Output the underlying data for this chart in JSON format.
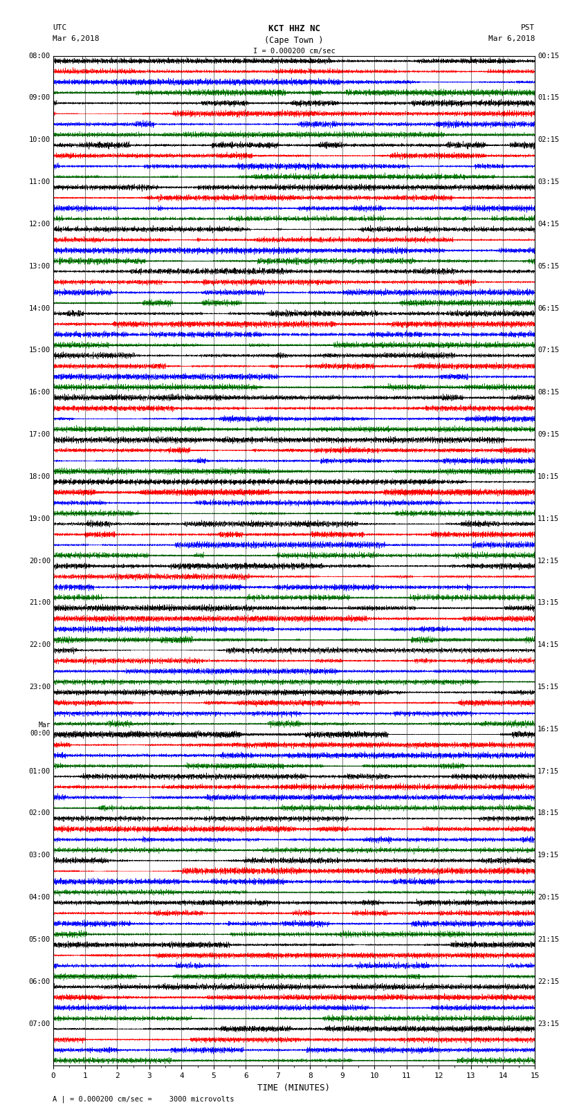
{
  "title_line1": "KCT HHZ NC",
  "title_line2": "(Cape Town )",
  "scale_label": "I = 0.000200 cm/sec",
  "bottom_label": "A | = 0.000200 cm/sec =    3000 microvolts",
  "xlabel": "TIME (MINUTES)",
  "left_times": [
    "08:00",
    "09:00",
    "10:00",
    "11:00",
    "12:00",
    "13:00",
    "14:00",
    "15:00",
    "16:00",
    "17:00",
    "18:00",
    "19:00",
    "20:00",
    "21:00",
    "22:00",
    "23:00",
    "Mar\n00:00",
    "01:00",
    "02:00",
    "03:00",
    "04:00",
    "05:00",
    "06:00",
    "07:00"
  ],
  "right_times": [
    "00:15",
    "01:15",
    "02:15",
    "03:15",
    "04:15",
    "05:15",
    "06:15",
    "07:15",
    "08:15",
    "09:15",
    "10:15",
    "11:15",
    "12:15",
    "13:15",
    "14:15",
    "15:15",
    "16:15",
    "17:15",
    "18:15",
    "19:15",
    "20:15",
    "21:15",
    "22:15",
    "23:15"
  ],
  "n_rows": 96,
  "n_minutes": 15,
  "colors": [
    "black",
    "red",
    "blue",
    "green"
  ],
  "bg_color": "white",
  "seed": 42
}
